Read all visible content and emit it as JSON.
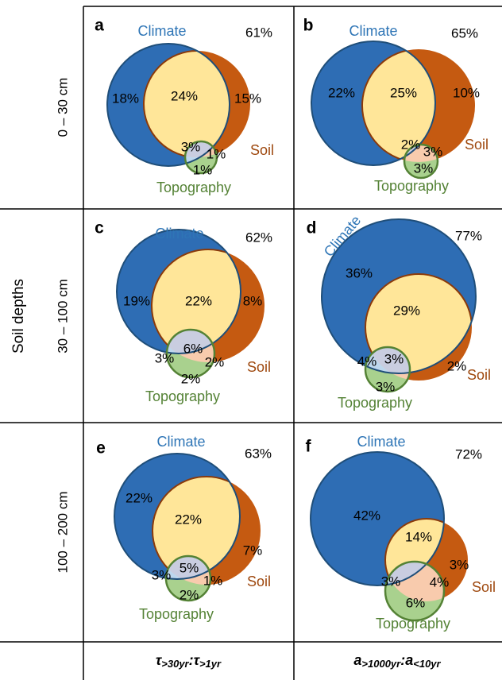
{
  "y_axis_label": "Soil depths",
  "row_labels": [
    "0 – 30 cm",
    "30 – 100 cm",
    "100 – 200 cm"
  ],
  "column_labels": [
    [
      "τ",
      ">30yr",
      ":τ",
      ">1yr"
    ],
    [
      "a",
      ">1000yr",
      ":a",
      "<10yr"
    ]
  ],
  "panels": [
    {
      "letter": "a",
      "total": "61%",
      "sets": [
        "Climate",
        "Soil",
        "Topography"
      ],
      "regions": [
        "18%",
        "24%",
        "15%",
        "3%",
        "1%",
        "1%"
      ]
    },
    {
      "letter": "b",
      "total": "65%",
      "sets": [
        "Climate",
        "Soil",
        "Topography"
      ],
      "regions": [
        "22%",
        "25%",
        "10%",
        "2%",
        "3%",
        "3%"
      ]
    },
    {
      "letter": "c",
      "total": "62%",
      "sets": [
        "Climate",
        "Soil",
        "Topography"
      ],
      "regions": [
        "19%",
        "22%",
        "8%",
        "6%",
        "3%",
        "2%",
        "2%"
      ]
    },
    {
      "letter": "d",
      "total": "77%",
      "sets": [
        "Climate",
        "Soil",
        "Topography"
      ],
      "regions": [
        "36%",
        "29%",
        "4%",
        "3%",
        "3%",
        "2%"
      ]
    },
    {
      "letter": "e",
      "total": "63%",
      "sets": [
        "Climate",
        "Soil",
        "Topography"
      ],
      "regions": [
        "22%",
        "22%",
        "7%",
        "5%",
        "3%",
        "1%",
        "2%"
      ]
    },
    {
      "letter": "f",
      "total": "72%",
      "sets": [
        "Climate",
        "Soil",
        "Topography"
      ],
      "regions": [
        "42%",
        "14%",
        "3%",
        "3%",
        "4%",
        "6%"
      ]
    }
  ]
}
